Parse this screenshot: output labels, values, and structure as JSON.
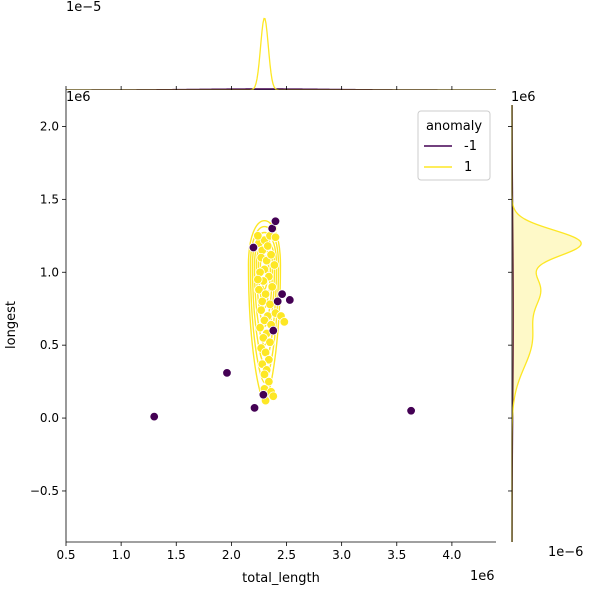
{
  "chart_data": {
    "type": "scatter",
    "xlabel": "total_length",
    "ylabel": "longest",
    "x_offset_label": "1e6",
    "y_offset_label": "1e6",
    "top_marginal_offset_label": "1e−5",
    "right_marginal_offset_label": "1e6",
    "right_marginal_bottom_label": "1e−6",
    "xlim": [
      0.5,
      4.4
    ],
    "ylim": [
      -0.85,
      2.25
    ],
    "x_ticks": [
      0.5,
      1.0,
      1.5,
      2.0,
      2.5,
      3.0,
      3.5,
      4.0
    ],
    "x_tick_labels": [
      "0.5",
      "1.0",
      "1.5",
      "2.0",
      "2.5",
      "3.0",
      "3.5",
      "4.0"
    ],
    "y_ticks": [
      -0.5,
      0.0,
      0.5,
      1.0,
      1.5,
      2.0
    ],
    "y_tick_labels": [
      "−0.5",
      "0.0",
      "0.5",
      "1.0",
      "1.5",
      "2.0"
    ],
    "legend": {
      "title": "anomaly",
      "position": "top-right",
      "entries": [
        {
          "label": "-1",
          "color": "#440154"
        },
        {
          "label": "1",
          "color": "#fde725"
        }
      ]
    },
    "colors": {
      "anomaly": "#440154",
      "normal": "#fde725",
      "edge": "#ffffff"
    },
    "series": [
      {
        "name": "-1",
        "color": "#440154",
        "points": [
          [
            1.3,
            0.01
          ],
          [
            1.96,
            0.31
          ],
          [
            2.21,
            0.07
          ],
          [
            3.63,
            0.05
          ],
          [
            2.2,
            1.17
          ],
          [
            2.37,
            1.3
          ],
          [
            2.4,
            1.35
          ],
          [
            2.42,
            0.8
          ],
          [
            2.46,
            0.85
          ],
          [
            2.53,
            0.81
          ],
          [
            2.38,
            0.6
          ],
          [
            2.29,
            0.16
          ]
        ]
      },
      {
        "name": "1",
        "color": "#fde725",
        "points": [
          [
            2.25,
            1.2
          ],
          [
            2.3,
            1.22
          ],
          [
            2.35,
            1.25
          ],
          [
            2.28,
            1.15
          ],
          [
            2.33,
            1.18
          ],
          [
            2.4,
            1.24
          ],
          [
            2.27,
            1.1
          ],
          [
            2.32,
            1.08
          ],
          [
            2.36,
            1.12
          ],
          [
            2.3,
            1.02
          ],
          [
            2.26,
            1.0
          ],
          [
            2.34,
            0.97
          ],
          [
            2.29,
            0.94
          ],
          [
            2.37,
            0.9
          ],
          [
            2.25,
            0.88
          ],
          [
            2.31,
            0.85
          ],
          [
            2.28,
            0.8
          ],
          [
            2.35,
            0.78
          ],
          [
            2.27,
            0.74
          ],
          [
            2.33,
            0.7
          ],
          [
            2.3,
            0.67
          ],
          [
            2.36,
            0.64
          ],
          [
            2.26,
            0.62
          ],
          [
            2.32,
            0.58
          ],
          [
            2.29,
            0.55
          ],
          [
            2.35,
            0.52
          ],
          [
            2.27,
            0.48
          ],
          [
            2.31,
            0.45
          ],
          [
            2.34,
            0.4
          ],
          [
            2.28,
            0.37
          ],
          [
            2.32,
            0.33
          ],
          [
            2.3,
            0.3
          ],
          [
            2.34,
            0.25
          ],
          [
            2.3,
            0.2
          ],
          [
            2.38,
            1.3
          ],
          [
            2.24,
            1.25
          ],
          [
            2.39,
            1.05
          ],
          [
            2.24,
            0.95
          ],
          [
            2.4,
            0.72
          ],
          [
            2.45,
            0.7
          ],
          [
            2.48,
            0.66
          ],
          [
            2.36,
            0.18
          ],
          [
            2.31,
            0.12
          ],
          [
            2.38,
            0.15
          ]
        ]
      }
    ],
    "marginal_top": {
      "type": "kde",
      "series": [
        {
          "name": "1",
          "peak_x": 2.3,
          "peak_height": 1.0,
          "width": 0.035
        },
        {
          "name": "-1",
          "peak_x": 2.3,
          "peak_height": 0.015,
          "width": 0.6
        }
      ]
    },
    "marginal_right": {
      "type": "kde",
      "series": [
        {
          "name": "1",
          "components": [
            [
              1.2,
              1.0,
              0.09
            ],
            [
              0.55,
              0.3,
              0.2
            ],
            [
              0.9,
              0.35,
              0.12
            ]
          ]
        },
        {
          "name": "-1",
          "components": [
            [
              0.7,
              0.02,
              0.6
            ]
          ]
        }
      ]
    },
    "contours": {
      "name": "1",
      "center_x": 2.3,
      "center_y": 1.05,
      "levels": 7
    }
  }
}
